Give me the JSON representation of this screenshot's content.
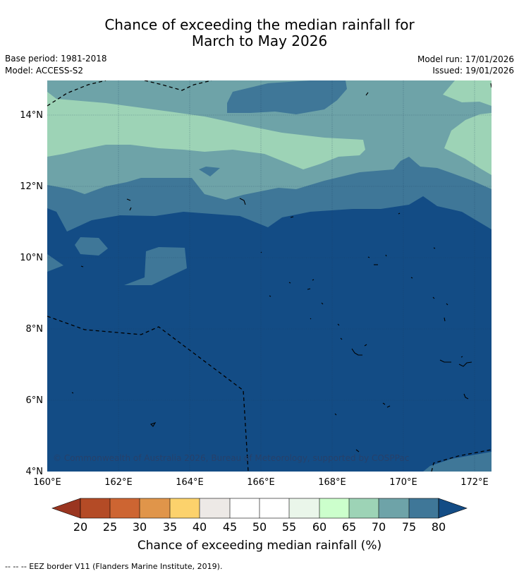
{
  "title_line1": "Chance of exceeding the median rainfall for",
  "title_line2": "March to May 2026",
  "base_period": "Base period: 1981-2018",
  "model": "Model: ACCESS-S2",
  "model_run": "Model run: 17/01/2026",
  "issued": "Issued: 19/01/2026",
  "copyright": "© Commonwealth of Australia 2026, Bureau of Meteorology, supported by COSPPac",
  "colorbar_label": "Chance of exceeding median rainfall (%)",
  "footer_note": "--  --  -- EEZ border V11 (Flanders Marine Institute, 2019).",
  "colors": {
    "lt20": "#9a3520",
    "c20_25": "#b44b26",
    "c25_30": "#cd6532",
    "c30_35": "#e0954a",
    "c35_40": "#fcd26c",
    "c40_45": "#ede9e6",
    "c45_50": "#ffffff",
    "c50_55": "#ffffff",
    "c55_60": "#eaf6ea",
    "c60_65": "#ccffcc",
    "c65_70": "#9dd3b6",
    "c70_75": "#6ea3a8",
    "c75_80": "#3f7798",
    "gt80": "#134c85"
  },
  "chart_data": {
    "type": "heatmap",
    "title": "Chance of exceeding the median rainfall for March to May 2026",
    "variable": "Chance of exceeding median rainfall (%)",
    "x_ticks": [
      "160°E",
      "162°E",
      "164°E",
      "166°E",
      "168°E",
      "170°E",
      "172°E"
    ],
    "x_tick_values": [
      160,
      162,
      164,
      166,
      168,
      170,
      172
    ],
    "y_ticks": [
      "4°N",
      "6°N",
      "8°N",
      "10°N",
      "12°N",
      "14°N"
    ],
    "y_tick_values": [
      4,
      6,
      8,
      10,
      12,
      14
    ],
    "xlim": [
      160,
      172.5
    ],
    "ylim": [
      4,
      15
    ],
    "colorbar_ticks": [
      "20",
      "25",
      "30",
      "35",
      "40",
      "45",
      "50",
      "55",
      "60",
      "65",
      "70",
      "75",
      "80"
    ],
    "colorbar_values": [
      20,
      25,
      30,
      35,
      40,
      45,
      50,
      55,
      60,
      65,
      70,
      75,
      80
    ],
    "zones": [
      {
        "range": ">80",
        "area": "south of ~11°N"
      },
      {
        "range": "75-80",
        "area": "band ~11-12.5°N and north-east of 164°E near 14.5°N"
      },
      {
        "range": "70-75",
        "area": "bands near 12.5-13°N and 14-15°N"
      },
      {
        "range": "65-70",
        "area": "band ~13-14°N and north-east corner"
      }
    ]
  }
}
